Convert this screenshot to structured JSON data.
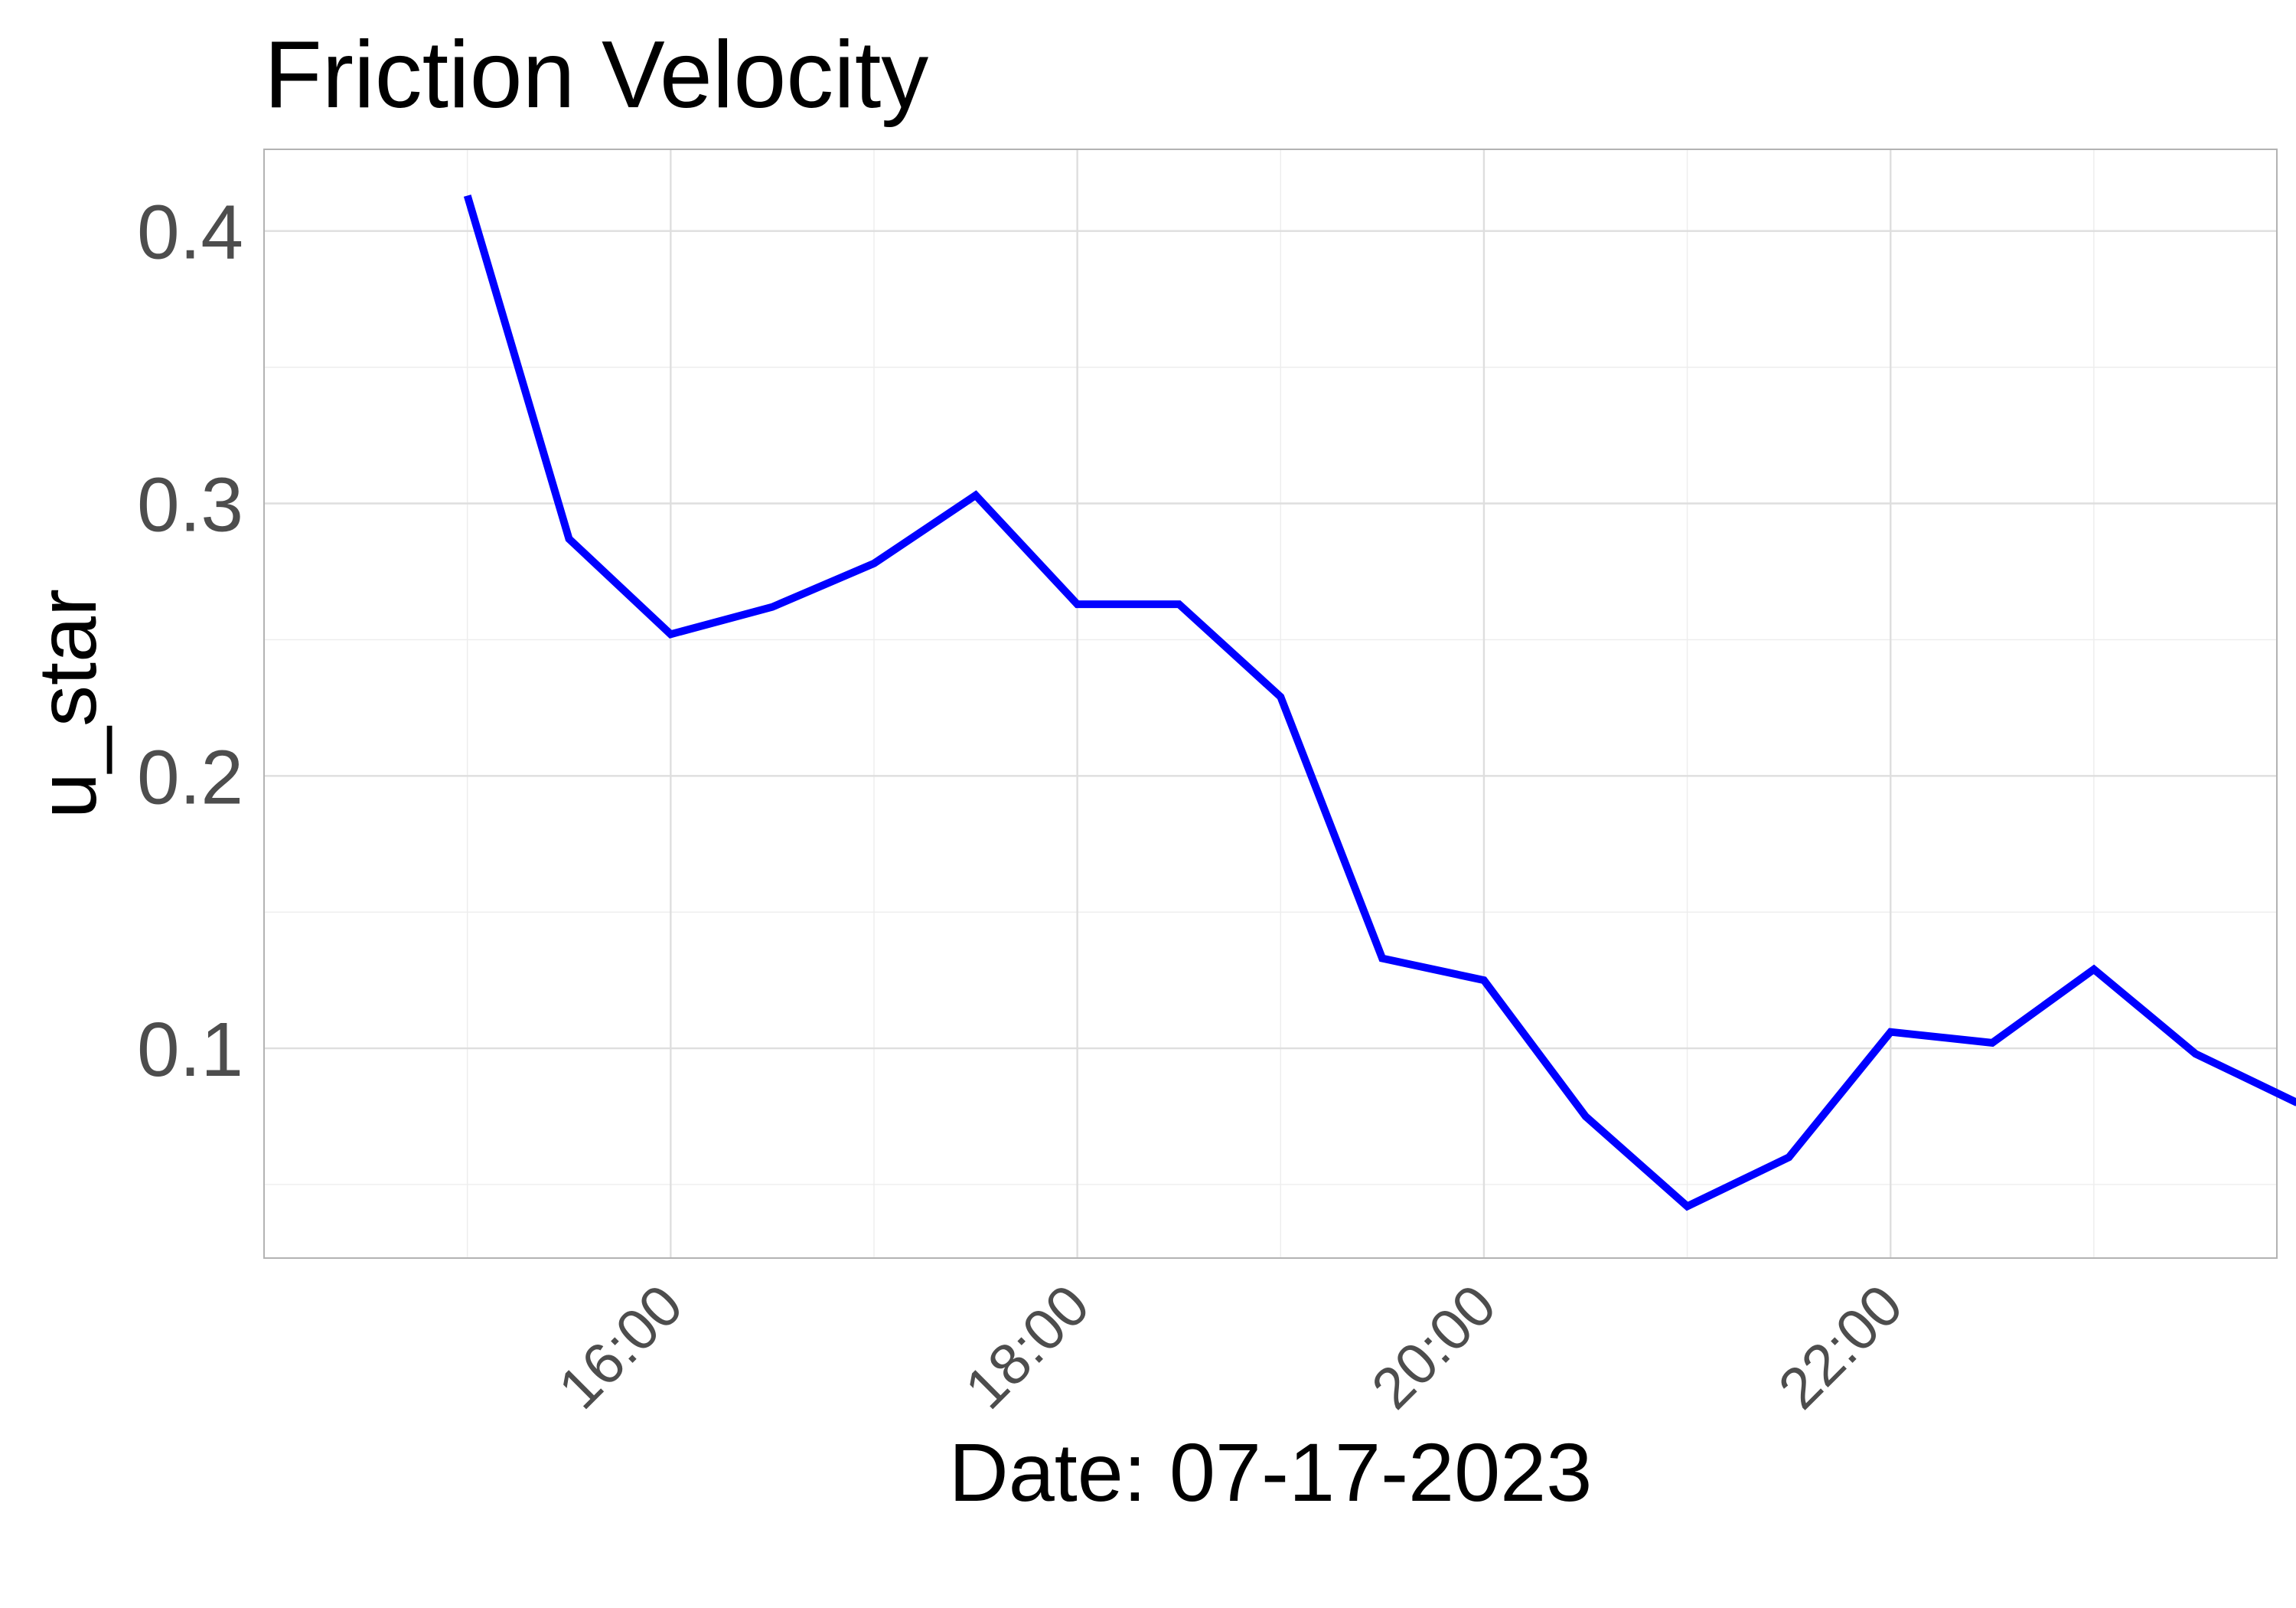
{
  "chart_data": {
    "type": "line",
    "title": "Friction Velocity",
    "xlabel": "Date: 07-17-2023",
    "ylabel": "u_star",
    "x_ticks": [
      "16:00",
      "18:00",
      "20:00",
      "22:00"
    ],
    "x_tick_values": [
      16,
      18,
      20,
      22
    ],
    "y_ticks": [
      "0.1",
      "0.2",
      "0.3",
      "0.4"
    ],
    "y_tick_values": [
      0.1,
      0.2,
      0.3,
      0.4
    ],
    "xlim": [
      14.0,
      23.9
    ],
    "ylim": [
      0.023,
      0.43
    ],
    "grid": true,
    "legend": "none",
    "line_color": "#0000ff",
    "series": [
      {
        "x": [
          "15:00",
          "15:30",
          "16:00",
          "16:30",
          "17:00",
          "17:30",
          "18:00",
          "18:30",
          "19:00",
          "19:30",
          "20:00",
          "20:30",
          "21:00",
          "21:30",
          "22:00",
          "22:30",
          "23:00",
          "23:30",
          "24:00"
        ],
        "values": [
          0.413,
          0.287,
          0.252,
          0.262,
          0.278,
          0.303,
          0.263,
          0.263,
          0.229,
          0.133,
          0.125,
          0.075,
          0.042,
          0.06,
          0.106,
          0.102,
          0.129,
          0.098,
          0.08
        ]
      }
    ]
  }
}
